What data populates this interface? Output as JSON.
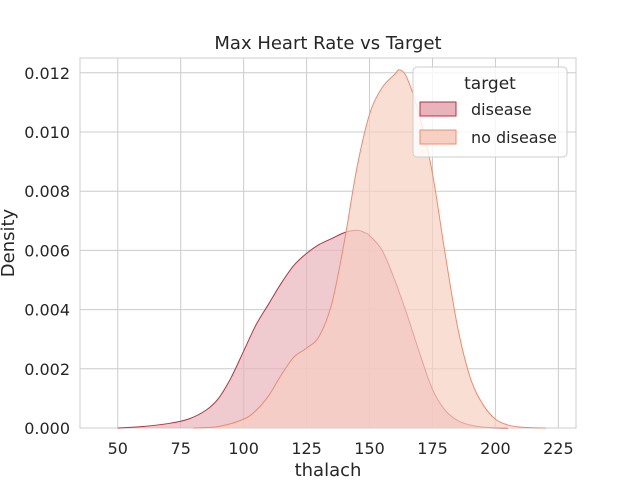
{
  "chart_data": {
    "type": "area",
    "title": "Max Heart Rate vs Target",
    "xlabel": "thalach",
    "ylabel": "Density",
    "xlim": [
      35,
      232
    ],
    "ylim": [
      0,
      0.0125
    ],
    "x_ticks": [
      50,
      75,
      100,
      125,
      150,
      175,
      200,
      225
    ],
    "y_ticks": [
      0.0,
      0.002,
      0.004,
      0.006,
      0.008,
      0.01,
      0.012
    ],
    "y_tick_labels": [
      "0.000",
      "0.002",
      "0.004",
      "0.006",
      "0.008",
      "0.010",
      "0.012"
    ],
    "grid": true,
    "legend": {
      "title": "target",
      "position": "top-right",
      "entries": [
        "disease",
        "no disease"
      ]
    },
    "series": [
      {
        "name": "disease",
        "fill": "#e8b3ba",
        "stroke": "#b8323e",
        "x": [
          50,
          60,
          70,
          78,
          85,
          90,
          95,
          100,
          105,
          110,
          115,
          120,
          125,
          130,
          135,
          140,
          145,
          148,
          150,
          155,
          160,
          165,
          170,
          175,
          180,
          185,
          190,
          195,
          200,
          205
        ],
        "y": [
          0.0,
          5e-05,
          0.00015,
          0.0003,
          0.0006,
          0.001,
          0.0017,
          0.0026,
          0.0035,
          0.0042,
          0.0049,
          0.0055,
          0.0059,
          0.0062,
          0.0064,
          0.0066,
          0.00668,
          0.0066,
          0.0065,
          0.006,
          0.005,
          0.0038,
          0.0025,
          0.0013,
          0.0006,
          0.00025,
          0.0001,
          3e-05,
          1e-05,
          0.0
        ]
      },
      {
        "name": "no disease",
        "fill": "#f6d0c2",
        "stroke": "#ec8c6e",
        "x": [
          80,
          90,
          100,
          105,
          110,
          115,
          120,
          125,
          130,
          135,
          140,
          145,
          150,
          155,
          160,
          162,
          165,
          170,
          175,
          180,
          185,
          190,
          195,
          200,
          205,
          210,
          215,
          220
        ],
        "y": [
          0.0,
          5e-05,
          0.0003,
          0.0006,
          0.0011,
          0.0018,
          0.0024,
          0.0027,
          0.0031,
          0.0042,
          0.0063,
          0.0088,
          0.0106,
          0.0115,
          0.01195,
          0.0121,
          0.0118,
          0.0105,
          0.0086,
          0.0059,
          0.0034,
          0.0017,
          0.0008,
          0.0003,
          0.0001,
          3e-05,
          1e-05,
          0.0
        ]
      }
    ]
  }
}
